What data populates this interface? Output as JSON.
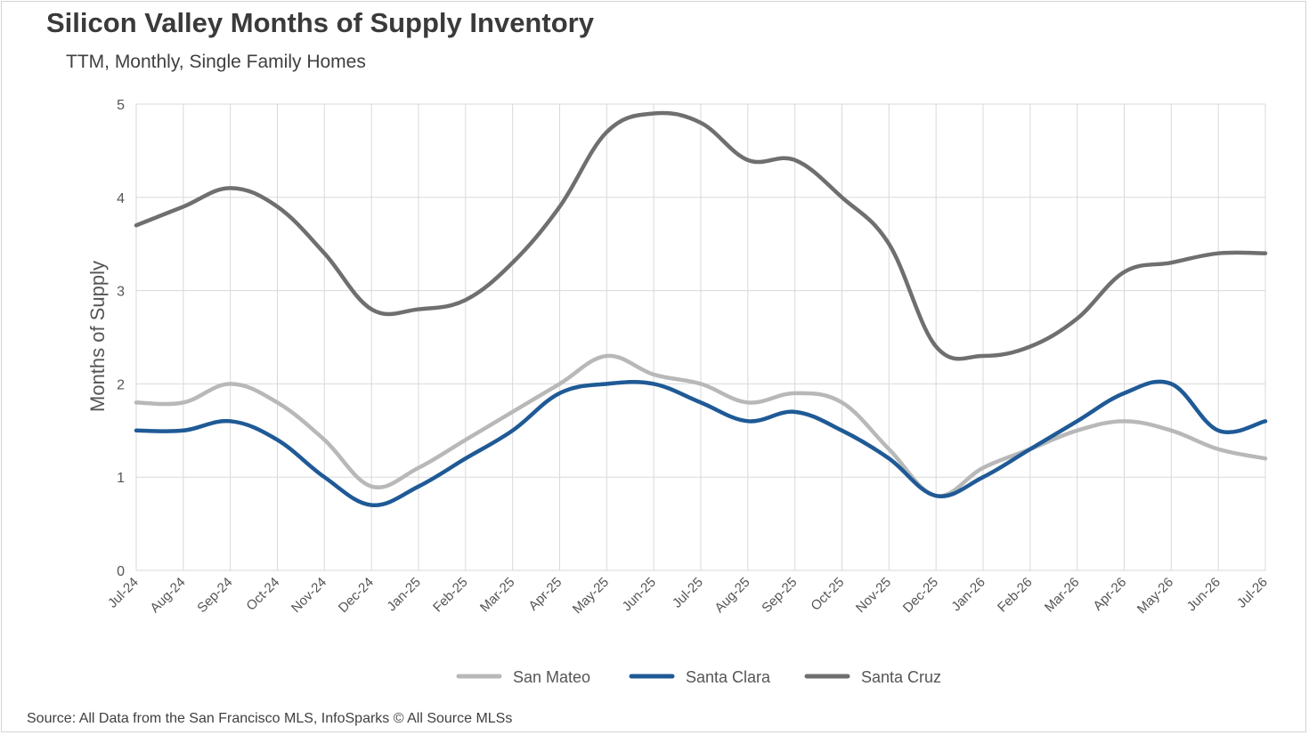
{
  "header": {
    "title": "Silicon Valley Months of Supply Inventory",
    "subtitle": "TTM, Monthly, Single Family Homes"
  },
  "footer": {
    "source": "Source: All Data from the San Francisco MLS, InfoSparks © All Source MLSs"
  },
  "colors": {
    "san_mateo": "#b8b8b8",
    "santa_clara": "#1f5a96",
    "santa_cruz": "#6f6f6f",
    "grid": "#d9d9d9"
  },
  "chart_data": {
    "type": "line",
    "title": "Silicon Valley Months of Supply Inventory",
    "subtitle": "TTM, Monthly, Single Family Homes",
    "xlabel": "",
    "ylabel": "Months of Supply",
    "ylim": [
      0,
      5
    ],
    "yticks": [
      0,
      1,
      2,
      3,
      4,
      5
    ],
    "grid": true,
    "legend_position": "bottom",
    "categories": [
      "Jul-24",
      "Aug-24",
      "Sep-24",
      "Oct-24",
      "Nov-24",
      "Dec-24",
      "Jan-25",
      "Feb-25",
      "Mar-25",
      "Apr-25",
      "May-25",
      "Jun-25",
      "Jul-25",
      "Aug-25",
      "Sep-25",
      "Oct-25",
      "Nov-25",
      "Dec-25",
      "Jan-26",
      "Feb-26",
      "Mar-26",
      "Apr-26",
      "May-26",
      "Jun-26",
      "Jul-26"
    ],
    "series": [
      {
        "name": "San Mateo",
        "color": "#b8b8b8",
        "values": [
          1.8,
          1.8,
          2.0,
          1.8,
          1.4,
          0.9,
          1.1,
          1.4,
          1.7,
          2.0,
          2.3,
          2.1,
          2.0,
          1.8,
          1.9,
          1.8,
          1.3,
          0.8,
          1.1,
          1.3,
          1.5,
          1.6,
          1.5,
          1.3,
          1.2
        ]
      },
      {
        "name": "Santa Clara",
        "color": "#1f5a96",
        "values": [
          1.5,
          1.5,
          1.6,
          1.4,
          1.0,
          0.7,
          0.9,
          1.2,
          1.5,
          1.9,
          2.0,
          2.0,
          1.8,
          1.6,
          1.7,
          1.5,
          1.2,
          0.8,
          1.0,
          1.3,
          1.6,
          1.9,
          2.0,
          1.5,
          1.6
        ]
      },
      {
        "name": "Santa Cruz",
        "color": "#6f6f6f",
        "values": [
          3.7,
          3.9,
          4.1,
          3.9,
          3.4,
          2.8,
          2.8,
          2.9,
          3.3,
          3.9,
          4.7,
          4.9,
          4.8,
          4.4,
          4.4,
          4.0,
          3.5,
          2.4,
          2.3,
          2.4,
          2.7,
          3.2,
          3.3,
          3.4,
          3.4
        ]
      }
    ]
  }
}
